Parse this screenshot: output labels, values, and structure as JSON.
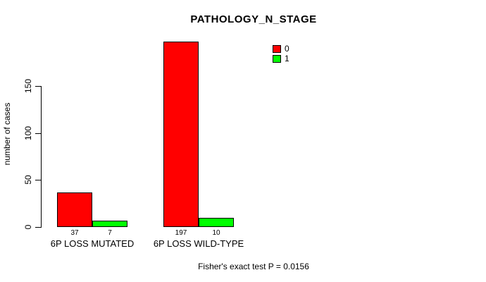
{
  "chart_data": {
    "type": "bar",
    "title": "PATHOLOGY_N_STAGE",
    "ylabel": "number of cases",
    "xlabel": "",
    "yticks": [
      0,
      50,
      100,
      150
    ],
    "ylim": [
      0,
      200
    ],
    "grid": false,
    "legend_position": "top-right",
    "categories": [
      "6P LOSS MUTATED",
      "6P LOSS WILD-TYPE"
    ],
    "series": [
      {
        "name": "0",
        "color": "#ff0000",
        "values": [
          37,
          197
        ]
      },
      {
        "name": "1",
        "color": "#00ff00",
        "values": [
          7,
          10
        ]
      }
    ],
    "bar_border_color": "#000000",
    "footer": "Fisher's exact test P = 0.0156"
  }
}
